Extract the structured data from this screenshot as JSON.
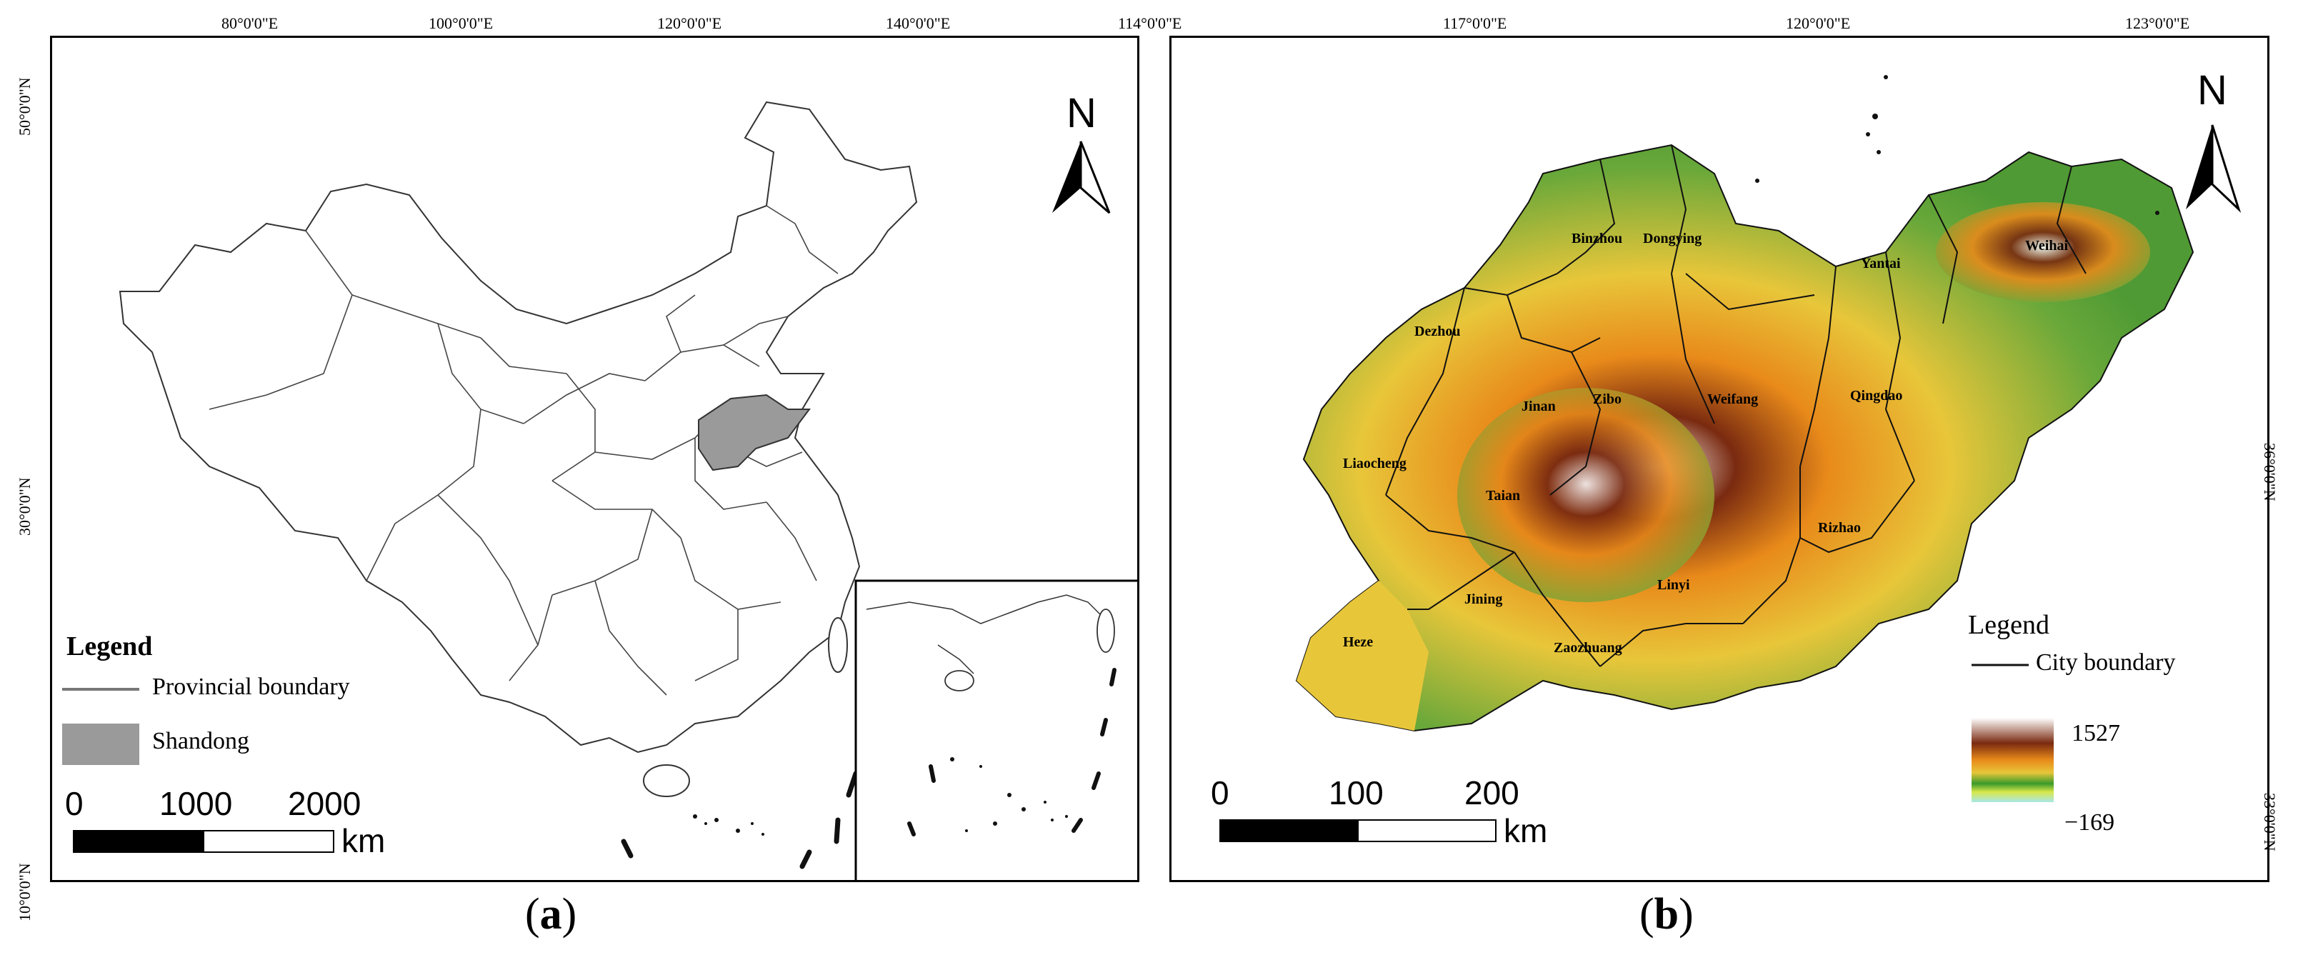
{
  "panel_a": {
    "lon_ticks": [
      "80°0'0\"E",
      "100°0'0\"E",
      "120°0'0\"E",
      "140°0'0\"E"
    ],
    "lat_ticks": [
      "50°0'0\"N",
      "30°0'0\"N",
      "10°0'0\"N"
    ],
    "legend_title": "Legend",
    "legend_items": [
      "Provincial boundary",
      "Shandong"
    ],
    "scale_numbers": [
      "0",
      "1000",
      "2000"
    ],
    "scale_unit": "km",
    "north": "N",
    "highlight_color": "#9a9a9a",
    "caption_open": "(",
    "caption_letter": "a",
    "caption_close": ")"
  },
  "panel_b": {
    "lon_ticks": [
      "114°0'0\"E",
      "117°0'0\"E",
      "120°0'0\"E",
      "123°0'0\"E"
    ],
    "lat_ticks": [
      "36°0'0\"N",
      "33°0'0\"N"
    ],
    "cities": [
      "Binzhou",
      "Dongying",
      "Dezhou",
      "Yantai",
      "Weihai",
      "Jinan",
      "Zibo",
      "Weifang",
      "Qingdao",
      "Liaocheng",
      "Taian",
      "Rizhao",
      "Jining",
      "Linyi",
      "Heze",
      "Zaozhuang"
    ],
    "legend_title": "Legend",
    "legend_items": [
      "City boundary"
    ],
    "elevation_max": "1527",
    "elevation_min": "−169",
    "scale_numbers": [
      "0",
      "100",
      "200"
    ],
    "scale_unit": "km",
    "north": "N",
    "colors": {
      "high": "#ffffff",
      "brown": "#7a2a10",
      "orange": "#e88a1a",
      "yellow": "#e8c63a",
      "green": "#6aa83a",
      "water": "#a8e8e8"
    },
    "caption_open": "(",
    "caption_letter": "b",
    "caption_close": ")"
  }
}
